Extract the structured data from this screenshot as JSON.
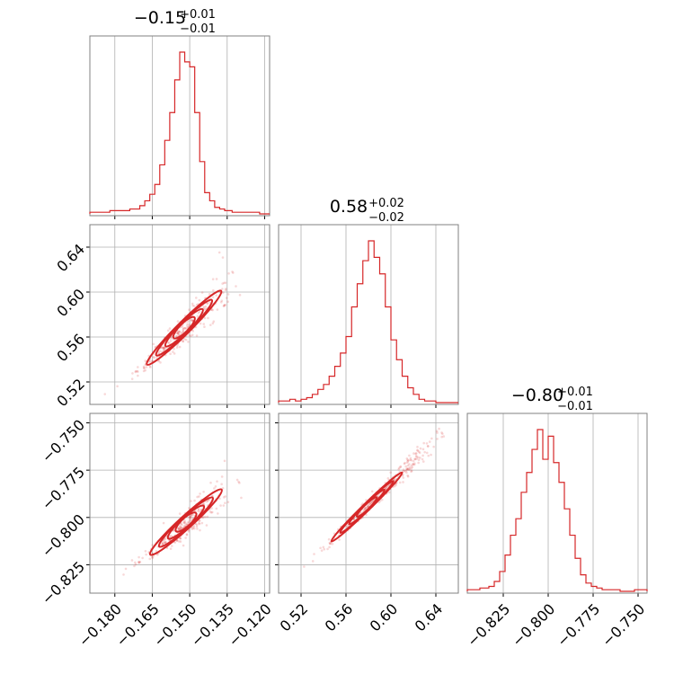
{
  "chart_data": {
    "type": "corner",
    "color": "#d62728",
    "grid": true,
    "titles": [
      {
        "value": "−0.15",
        "plus": "+0.01",
        "minus": "−0.01"
      },
      {
        "value": "0.58",
        "plus": "+0.02",
        "minus": "−0.02"
      },
      {
        "value": "−0.80",
        "plus": "+0.01",
        "minus": "−0.01"
      }
    ],
    "params": [
      {
        "xlim": [
          -0.19,
          -0.118
        ],
        "ylim": [
          0.5,
          0.66
        ],
        "ticks": [
          -0.18,
          -0.165,
          -0.15,
          -0.135,
          -0.12
        ],
        "tick_labels": [
          "−0.180",
          "−0.165",
          "−0.150",
          "−0.135",
          "−0.120"
        ]
      },
      {
        "xlim": [
          0.5,
          0.66
        ],
        "ylim": [
          0.5,
          0.66
        ],
        "ticks": [
          0.52,
          0.56,
          0.6,
          0.64
        ],
        "tick_labels": [
          "0.52",
          "0.56",
          "0.60",
          "0.64"
        ]
      },
      {
        "xlim": [
          -0.845,
          -0.745
        ],
        "ylim": [
          -0.84,
          -0.745
        ],
        "ticks": [
          -0.825,
          -0.8,
          -0.775,
          -0.75
        ],
        "tick_labels": [
          "−0.825",
          "−0.800",
          "−0.775",
          "−0.750"
        ]
      }
    ],
    "histograms": [
      {
        "bins_x": [
          -0.19,
          -0.186,
          -0.182,
          -0.178,
          -0.174,
          -0.17,
          -0.168,
          -0.166,
          -0.164,
          -0.162,
          -0.16,
          -0.158,
          -0.156,
          -0.154,
          -0.152,
          -0.15,
          -0.148,
          -0.146,
          -0.144,
          -0.142,
          -0.14,
          -0.138,
          -0.136,
          -0.133,
          -0.13,
          -0.126,
          -0.122,
          -0.118
        ],
        "counts": [
          1,
          1,
          2,
          2,
          3,
          5,
          8,
          12,
          18,
          30,
          45,
          62,
          82,
          99,
          93,
          90,
          62,
          32,
          13,
          8,
          4,
          3,
          2,
          1,
          1,
          1,
          0
        ]
      },
      {
        "bins_x": [
          0.5,
          0.51,
          0.515,
          0.52,
          0.525,
          0.53,
          0.535,
          0.54,
          0.545,
          0.55,
          0.555,
          0.56,
          0.565,
          0.57,
          0.575,
          0.58,
          0.585,
          0.59,
          0.595,
          0.6,
          0.605,
          0.61,
          0.615,
          0.62,
          0.625,
          0.63,
          0.64,
          0.66
        ],
        "counts": [
          1,
          2,
          1,
          2,
          3,
          5,
          8,
          11,
          16,
          22,
          30,
          40,
          58,
          72,
          86,
          98,
          88,
          78,
          58,
          38,
          26,
          16,
          9,
          5,
          2,
          1,
          0
        ]
      },
      {
        "bins_x": [
          -0.845,
          -0.838,
          -0.833,
          -0.83,
          -0.827,
          -0.824,
          -0.821,
          -0.818,
          -0.815,
          -0.812,
          -0.809,
          -0.806,
          -0.803,
          -0.8,
          -0.797,
          -0.794,
          -0.791,
          -0.788,
          -0.785,
          -0.782,
          -0.779,
          -0.776,
          -0.773,
          -0.77,
          -0.765,
          -0.76,
          -0.752,
          -0.745
        ],
        "counts": [
          1,
          2,
          3,
          6,
          12,
          22,
          34,
          44,
          60,
          72,
          86,
          98,
          80,
          94,
          78,
          66,
          50,
          34,
          20,
          10,
          5,
          3,
          2,
          1,
          1,
          0,
          1
        ]
      }
    ],
    "scatter": [
      {
        "row": 1,
        "col": 0,
        "x_range": [
          -0.186,
          -0.132
        ],
        "y_range": [
          0.51,
          0.615
        ],
        "curve": 1.0,
        "core": [
          0.35,
          0.9
        ]
      },
      {
        "row": 2,
        "col": 0,
        "x_range": [
          -0.184,
          -0.132
        ],
        "y_range": [
          -0.833,
          -0.778
        ],
        "curve": 1.0,
        "core": [
          0.35,
          0.9
        ]
      },
      {
        "row": 2,
        "col": 1,
        "x_range": [
          0.505,
          0.645
        ],
        "y_range": [
          -0.834,
          -0.755
        ],
        "curve": 0.25,
        "core": [
          0.3,
          0.75
        ]
      }
    ]
  }
}
